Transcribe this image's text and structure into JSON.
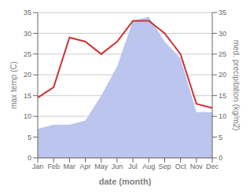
{
  "chart_data": {
    "type": "line",
    "xlabel": "date (month)",
    "ylabel": "max temp (C)",
    "y2label": "med. precipitation (kg/m2)",
    "categories": [
      "Jan",
      "Feb",
      "Mar",
      "Apr",
      "May",
      "Jun",
      "Jul",
      "Aug",
      "Sep",
      "Oct",
      "Nov",
      "Dec"
    ],
    "series": [
      {
        "type": "area",
        "axis": "y2",
        "color": "#bbc5ee",
        "values": [
          7,
          8,
          8,
          9,
          15,
          22,
          33,
          34,
          28,
          24,
          11,
          11
        ]
      },
      {
        "type": "line",
        "color": "#cc3333",
        "values": [
          14.5,
          17,
          29,
          28,
          25,
          28,
          33,
          33,
          30,
          25,
          13,
          12
        ]
      }
    ],
    "ylim": [
      0,
      35
    ],
    "yticks": [
      0,
      5,
      10,
      15,
      20,
      25,
      30,
      35
    ],
    "y2lim": [
      0,
      35
    ],
    "y2ticks": [
      0,
      5,
      10,
      15,
      20,
      25,
      30,
      35
    ],
    "grid": true
  }
}
